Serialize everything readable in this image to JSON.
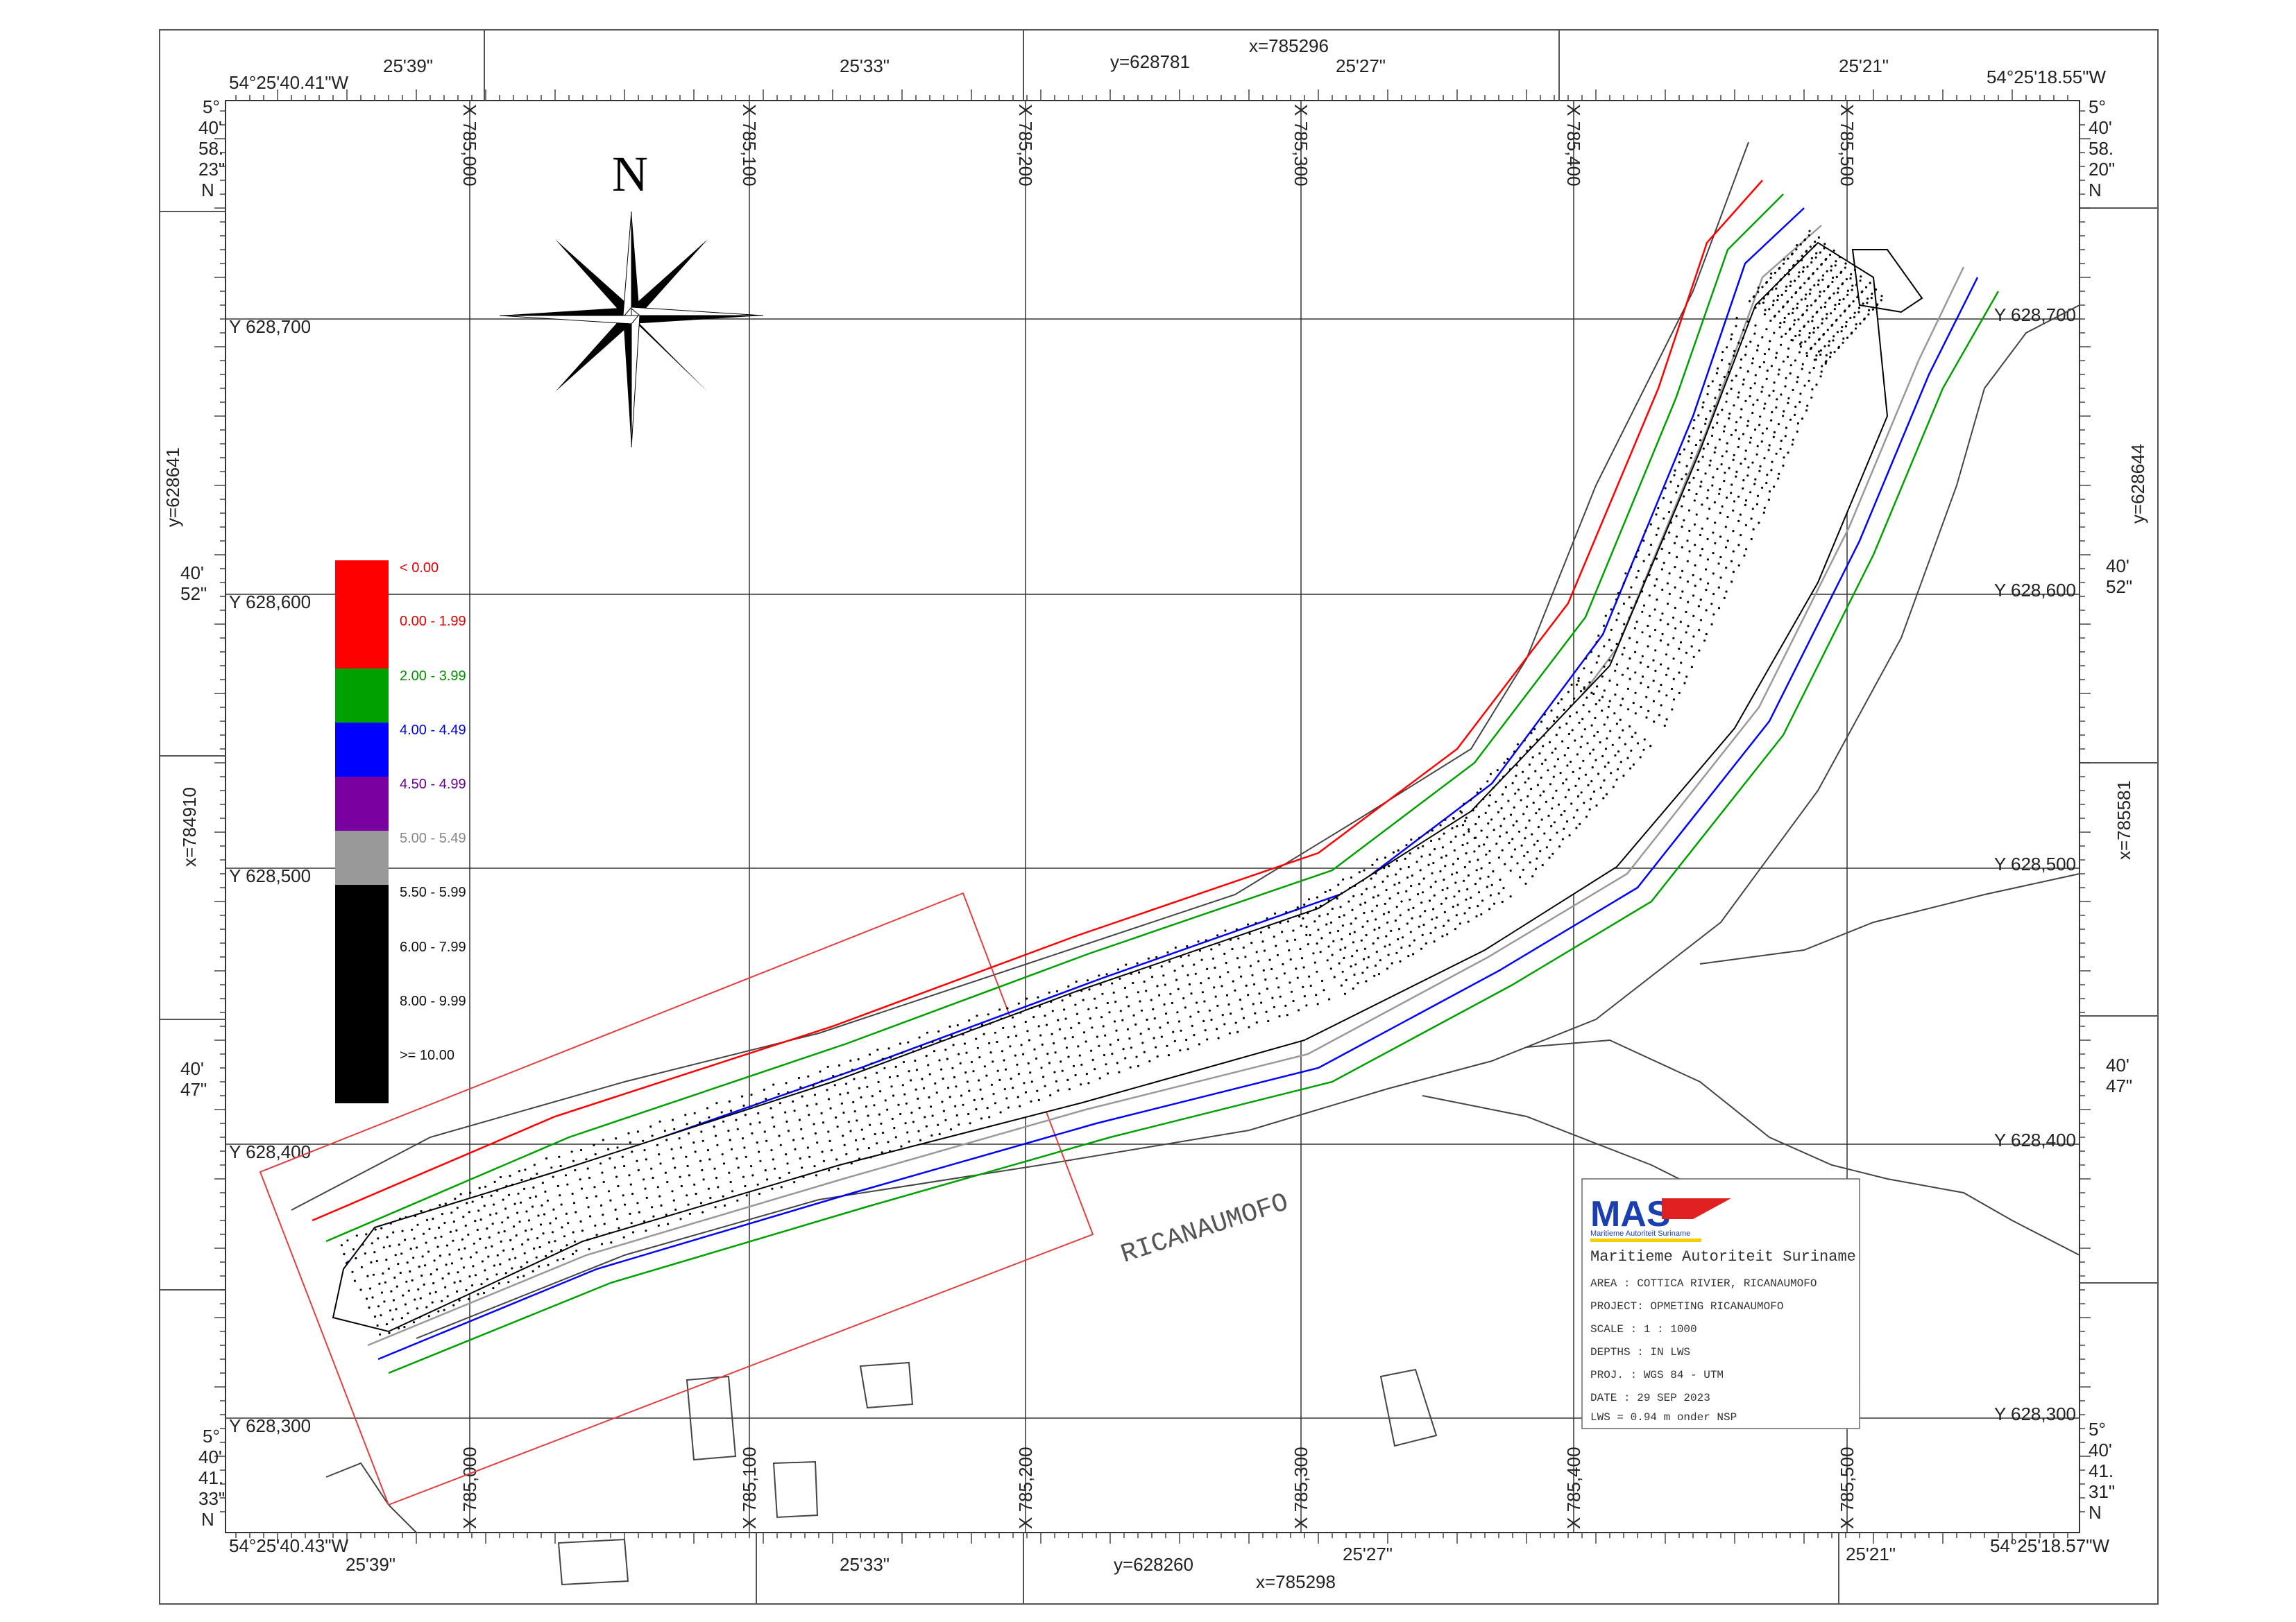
{
  "frame": {
    "corner_top_left": "54°25'40.41\"W",
    "corner_top_right": "54°25'18.55\"W",
    "corner_bottom_left": "54°25'40.43\"W",
    "corner_bottom_right": "54°25'18.57\"W",
    "top_center_x": "x=785296",
    "top_center_y": "y=628781",
    "bottom_center_x": "x=785298",
    "bottom_center_y": "y=628260",
    "left_center_y": "y=628641",
    "left_center_x": "x=784910",
    "right_center_y": "y=628644",
    "right_center_x": "x=785581",
    "top_minutes": [
      "25'39\"",
      "25'33\"",
      "25'27\"",
      "25'21\""
    ],
    "bottom_minutes": [
      "25'39\"",
      "25'33\"",
      "25'27\"",
      "25'21\""
    ],
    "left_lat": {
      "top": [
        "5°",
        "40'",
        "58.",
        "23\"",
        "N"
      ],
      "mid1": [
        "40'",
        "52\""
      ],
      "mid2": [
        "40'",
        "47\""
      ],
      "bottom": [
        "5°",
        "40'",
        "41.",
        "33\"",
        "N"
      ]
    },
    "right_lat": {
      "top": [
        "5°",
        "40'",
        "58.",
        "20\"",
        "N"
      ],
      "mid1": [
        "40'",
        "52\""
      ],
      "mid2": [
        "40'",
        "47\""
      ],
      "bottom": [
        "5°",
        "40'",
        "41.",
        "31\"",
        "N"
      ]
    }
  },
  "grid": {
    "x_labels": [
      "X 785,000",
      "X 785,100",
      "X 785,200",
      "X 785,300",
      "X 785,400",
      "X 785,500"
    ],
    "y_labels": [
      "Y 628,700",
      "Y 628,600",
      "Y 628,500",
      "Y 628,400",
      "Y 628,300"
    ]
  },
  "north": "N",
  "place_label": "RICANAUMOFO",
  "legend": [
    {
      "label": "< 0.00",
      "color": "#ff0000",
      "text_color": "#e00000"
    },
    {
      "label": "0.00 - 1.99",
      "color": "#ff0000",
      "text_color": "#e00000"
    },
    {
      "label": "2.00 - 3.99",
      "color": "#00a000",
      "text_color": "#009000"
    },
    {
      "label": "4.00 - 4.49",
      "color": "#0000ff",
      "text_color": "#0000dd"
    },
    {
      "label": "4.50 - 4.99",
      "color": "#7a00a0",
      "text_color": "#6a0090"
    },
    {
      "label": "5.00 - 5.49",
      "color": "#999999",
      "text_color": "#888888"
    },
    {
      "label": "5.50 - 5.99",
      "color": "#000000",
      "text_color": "#111111"
    },
    {
      "label": "6.00 - 7.99",
      "color": "#000000",
      "text_color": "#111111"
    },
    {
      "label": "8.00 - 9.99",
      "color": "#000000",
      "text_color": "#111111"
    },
    {
      "label": ">= 10.00",
      "color": "#000000",
      "text_color": "#111111"
    }
  ],
  "title_block": {
    "logo": "MAS",
    "logo_sub": "Maritieme Autoriteit Suriname",
    "org": "Maritieme Autoriteit Suriname",
    "lines": [
      "AREA    : COTTICA RIVIER, RICANAUMOFO",
      "PROJECT: OPMETING RICANAUMOFO",
      "SCALE   : 1 : 1000",
      "DEPTHS  : IN LWS",
      "PROJ.   : WGS 84 - UTM",
      "DATE    : 29 SEP 2023",
      "LWS = 0.94 m onder NSP"
    ]
  },
  "colors": {
    "red": "#ff0000",
    "green": "#00a000",
    "blue": "#0000ff",
    "grey": "#999999",
    "black": "#000000"
  }
}
